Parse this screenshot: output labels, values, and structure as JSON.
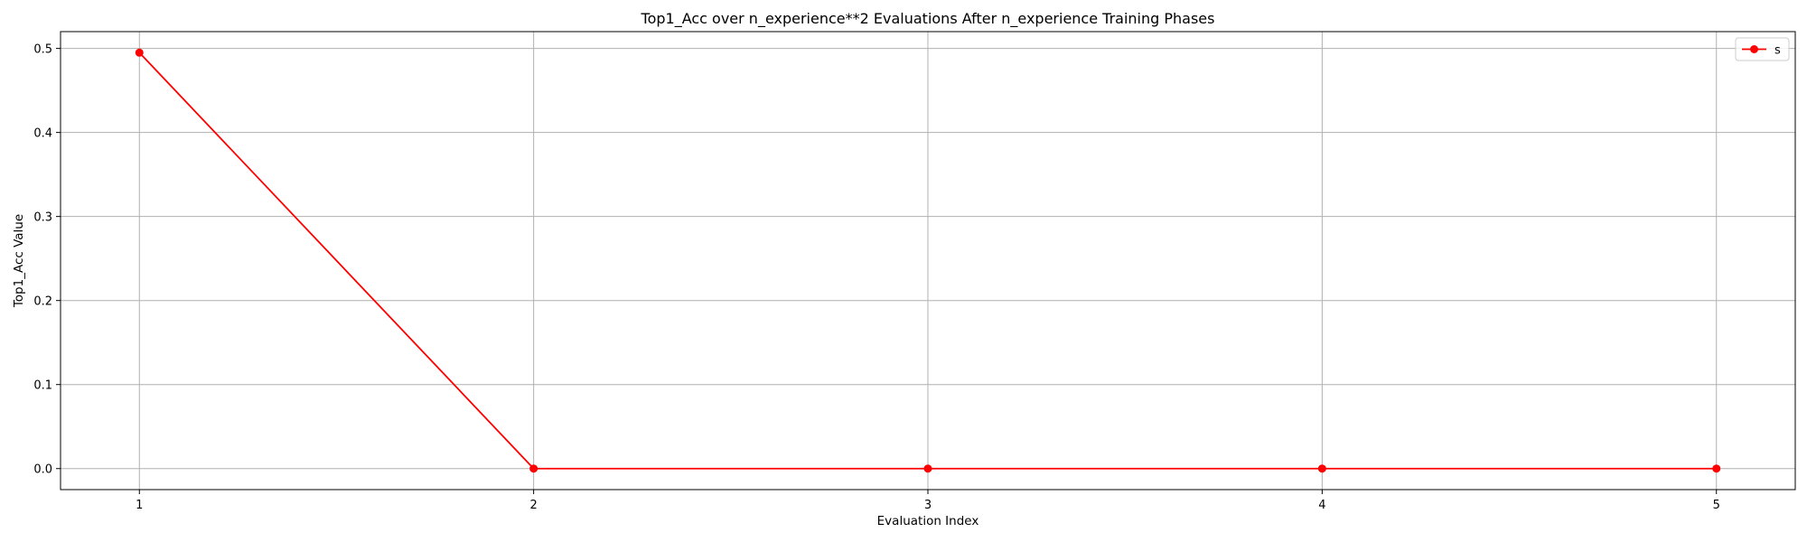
{
  "chart_data": {
    "type": "line",
    "title": "Top1_Acc over n_experience**2 Evaluations After n_experience Training Phases",
    "xlabel": "Evaluation Index",
    "ylabel": "Top1_Acc Value",
    "x": [
      1,
      2,
      3,
      4,
      5
    ],
    "xticks": [
      "1",
      "2",
      "3",
      "4",
      "5"
    ],
    "yticks": [
      "0.0",
      "0.1",
      "0.2",
      "0.3",
      "0.4",
      "0.5"
    ],
    "xlim": [
      0.8,
      5.2
    ],
    "ylim": [
      -0.025,
      0.52
    ],
    "grid": true,
    "legend_position": "top-right",
    "series": [
      {
        "name": "s",
        "color": "#ff0000",
        "marker": "circle",
        "values": [
          0.495,
          0.0,
          0.0,
          0.0,
          0.0
        ]
      }
    ]
  }
}
